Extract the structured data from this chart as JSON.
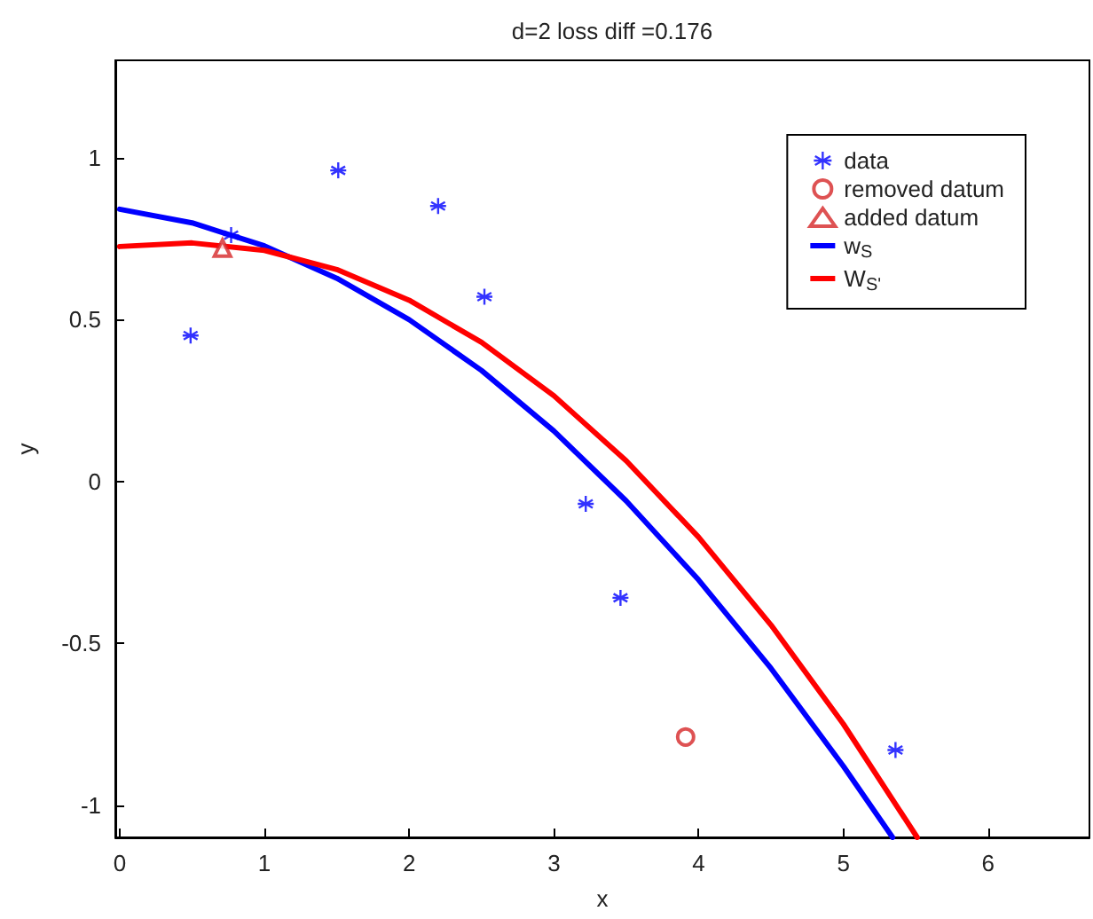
{
  "chart_data": {
    "type": "scatter",
    "title": "d=2 loss diff =0.176",
    "xlabel": "x",
    "ylabel": "y",
    "xlim": [
      -0.03,
      6.7
    ],
    "ylim": [
      -1.1,
      1.3
    ],
    "xticks": [
      0,
      1,
      2,
      3,
      4,
      5,
      6
    ],
    "yticks": [
      -1,
      -0.5,
      0,
      0.5,
      1
    ],
    "grid": false,
    "legend": "top right",
    "series": [
      {
        "name": "data",
        "marker": "cross",
        "color": "#0000ff",
        "x": [
          0.49,
          0.77,
          1.51,
          2.2,
          2.52,
          3.22,
          3.46,
          5.36
        ],
        "values": [
          0.45,
          0.76,
          0.96,
          0.85,
          0.57,
          -0.07,
          -0.36,
          -0.83
        ]
      },
      {
        "name": "removed datum",
        "marker": "circle",
        "color": "#d62728",
        "x": [
          3.91
        ],
        "values": [
          -0.79
        ]
      },
      {
        "name": "added datum",
        "marker": "triangle",
        "color": "#d62728",
        "x": [
          0.71
        ],
        "values": [
          0.72
        ]
      },
      {
        "name": "w$_{S}$",
        "type": "line",
        "marker": "none",
        "line_style": "solid",
        "color": "#0000ff",
        "x": [
          0,
          0.5,
          1,
          1.5,
          2,
          2.5,
          3,
          3.5,
          4,
          4.5,
          5,
          5.34
        ],
        "values": [
          0.84,
          0.798,
          0.727,
          0.627,
          0.499,
          0.342,
          0.155,
          -0.061,
          -0.305,
          -0.578,
          -0.88,
          -1.1
        ]
      },
      {
        "name": "W$_{S'}$",
        "type": "line",
        "marker": "none",
        "line_style": "solid",
        "color": "#ff0000",
        "x": [
          0,
          0.5,
          1,
          1.5,
          2,
          2.5,
          3,
          3.5,
          4,
          4.5,
          5,
          5.51
        ],
        "values": [
          0.725,
          0.736,
          0.713,
          0.654,
          0.559,
          0.429,
          0.264,
          0.063,
          -0.173,
          -0.444,
          -0.75,
          -1.1
        ]
      }
    ]
  }
}
